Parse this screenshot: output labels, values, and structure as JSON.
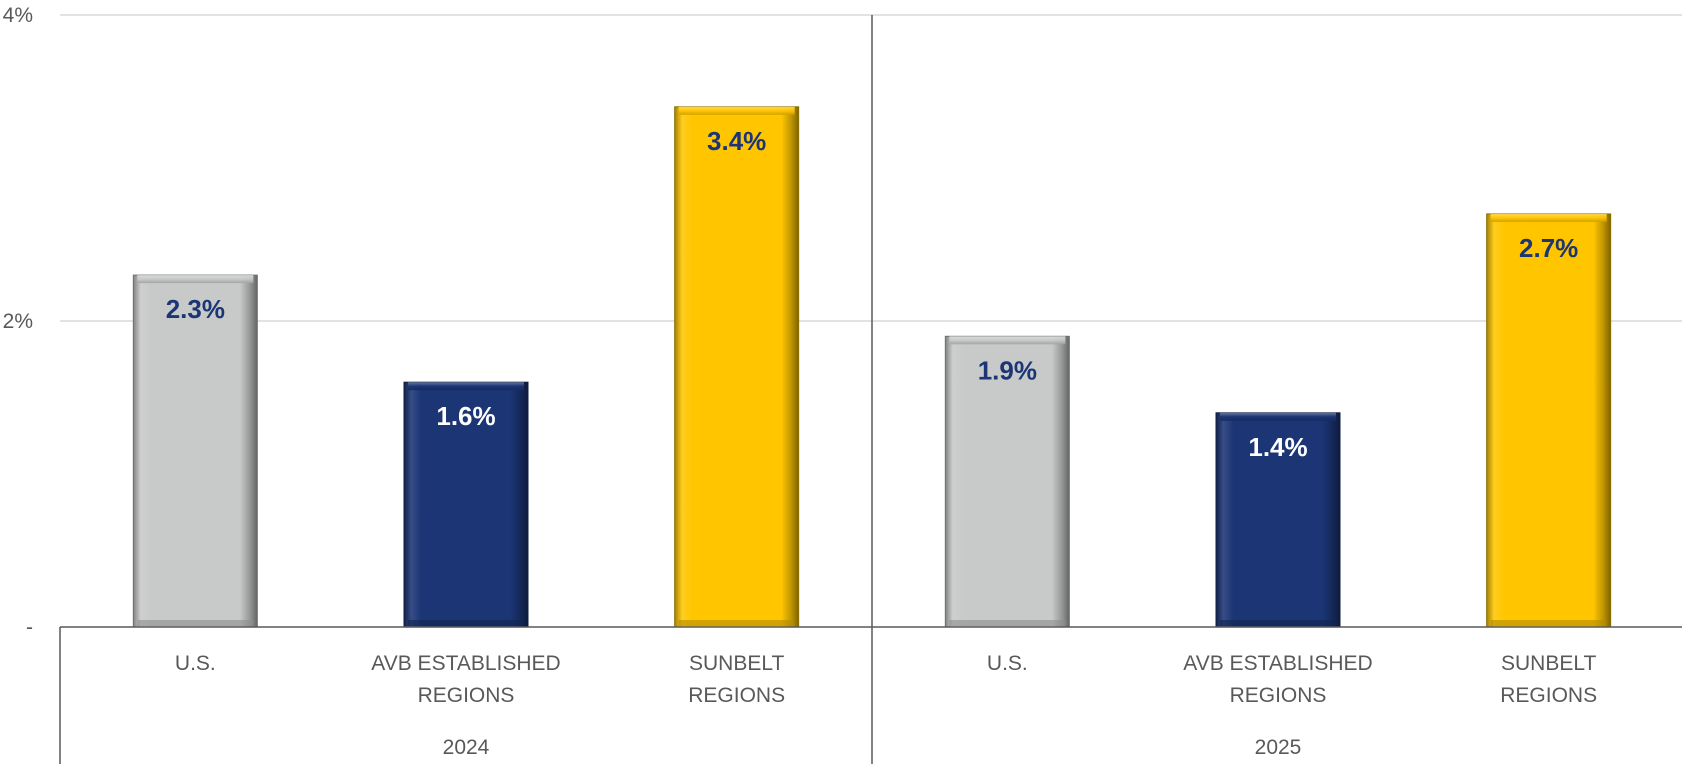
{
  "chart_data": {
    "type": "bar",
    "y_ticks": [
      {
        "value": 0,
        "label": "-"
      },
      {
        "value": 2,
        "label": "2%"
      },
      {
        "value": 4,
        "label": "4%"
      }
    ],
    "ylim": [
      0,
      4
    ],
    "grid": true,
    "groups": [
      {
        "name": "2024",
        "bars": [
          {
            "category": [
              "U.S."
            ],
            "value": 2.3,
            "label": "2.3%",
            "color": "#c8c9c9",
            "label_color": "#1b3575"
          },
          {
            "category": [
              "AVB ESTABLISHED",
              "REGIONS"
            ],
            "value": 1.6,
            "label": "1.6%",
            "color": "#1b3575",
            "label_color": "#ffffff"
          },
          {
            "category": [
              "SUNBELT",
              "REGIONS"
            ],
            "value": 3.4,
            "label": "3.4%",
            "color": "#ffc600",
            "label_color": "#1b3575"
          }
        ]
      },
      {
        "name": "2025",
        "bars": [
          {
            "category": [
              "U.S."
            ],
            "value": 1.9,
            "label": "1.9%",
            "color": "#c8c9c9",
            "label_color": "#1b3575"
          },
          {
            "category": [
              "AVB ESTABLISHED",
              "REGIONS"
            ],
            "value": 1.4,
            "label": "1.4%",
            "color": "#1b3575",
            "label_color": "#ffffff"
          },
          {
            "category": [
              "SUNBELT",
              "REGIONS"
            ],
            "value": 2.7,
            "label": "2.7%",
            "color": "#ffc600",
            "label_color": "#1b3575"
          }
        ]
      }
    ]
  }
}
